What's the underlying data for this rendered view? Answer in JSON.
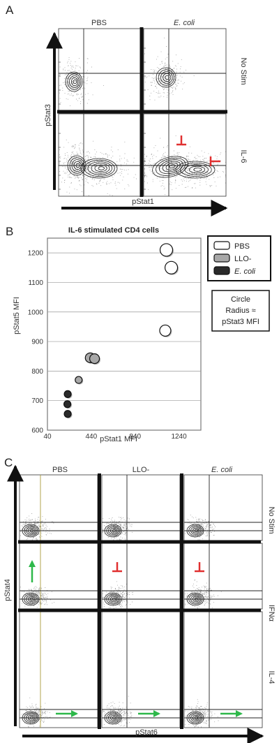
{
  "panel_a": {
    "letter": "A",
    "columns": [
      "PBS",
      "E. coli"
    ],
    "rows": [
      "No Stim",
      "IL-6"
    ],
    "xlabel": "pStat1",
    "ylabel": "pStat3"
  },
  "chart_data": {
    "type": "scatter",
    "title": "IL-6 stimulated CD4 cells",
    "xlabel": "pStat1 MFI",
    "ylabel": "pStat5 MFI",
    "xlim": [
      40,
      1440
    ],
    "ylim": [
      600,
      1250
    ],
    "xticks": [
      40,
      440,
      840,
      1240
    ],
    "yticks": [
      600,
      700,
      800,
      900,
      1000,
      1100,
      1200
    ],
    "grid": "horizontal",
    "legend_placement": "right",
    "series": [
      {
        "name": "PBS",
        "color": "#ffffff",
        "points": [
          {
            "x": 1125,
            "y": 1210,
            "r": 9
          },
          {
            "x": 1170,
            "y": 1150,
            "r": 9
          },
          {
            "x": 1115,
            "y": 937,
            "r": 8
          }
        ]
      },
      {
        "name": "LLO-",
        "color": "#a8a8a8",
        "points": [
          {
            "x": 430,
            "y": 845,
            "r": 7
          },
          {
            "x": 470,
            "y": 842,
            "r": 7
          },
          {
            "x": 325,
            "y": 770,
            "r": 5
          }
        ]
      },
      {
        "name": "E. coli",
        "color": "#2a2a2a",
        "points": [
          {
            "x": 225,
            "y": 722,
            "r": 5
          },
          {
            "x": 222,
            "y": 688,
            "r": 5
          },
          {
            "x": 225,
            "y": 655,
            "r": 5
          }
        ]
      }
    ],
    "note": [
      "Circle",
      "Radius ≈",
      "pStat3 MFI"
    ]
  },
  "panel_b": {
    "letter": "B"
  },
  "panel_c": {
    "letter": "C",
    "columns": [
      "PBS",
      "LLO-",
      "E. coli"
    ],
    "rows": [
      "No Stim",
      "IFNα",
      "IL-4"
    ],
    "xlabel": "pStat6",
    "ylabel": "pStat4"
  },
  "colors": {
    "inhibit": "#e03030",
    "increase": "#2eb84a",
    "gate": "#222222"
  }
}
